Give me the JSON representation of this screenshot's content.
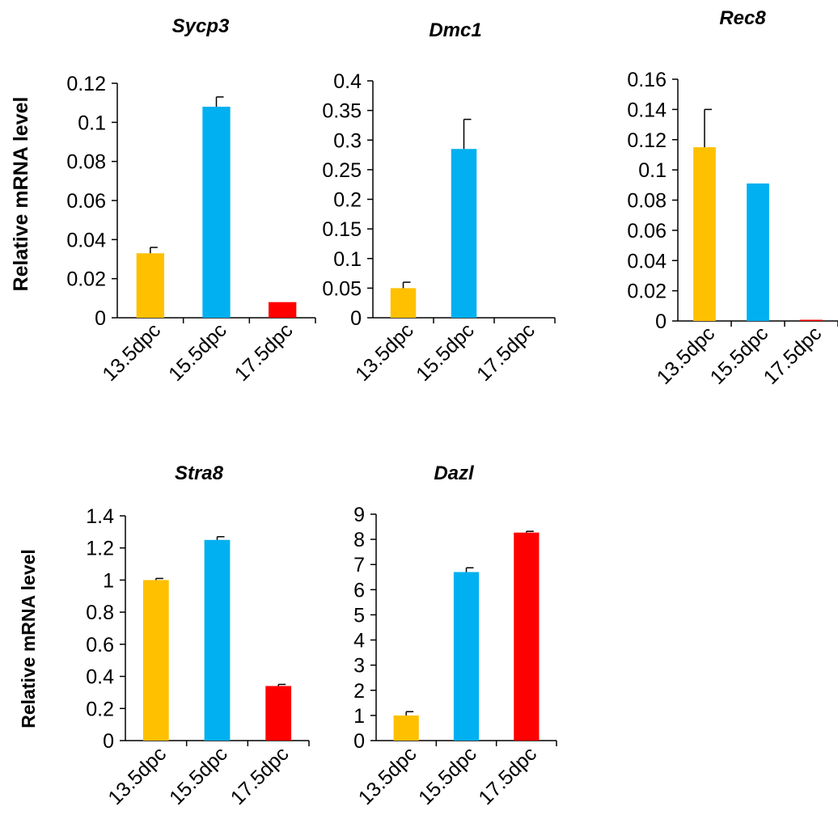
{
  "colors": {
    "13.5dpc": "#FFC000",
    "15.5dpc": "#00B0F0",
    "17.5dpc": "#FF0000"
  },
  "chart_data": [
    {
      "type": "bar",
      "title": "Sycp3",
      "ylabel": "Relative mRNA level",
      "categories": [
        "13.5dpc",
        "15.5dpc",
        "17.5dpc"
      ],
      "values": [
        0.033,
        0.108,
        0.008
      ],
      "errors": [
        0.003,
        0.005,
        0
      ],
      "ylim": [
        0,
        0.12
      ],
      "yticks": [
        0,
        0.02,
        0.04,
        0.06,
        0.08,
        0.1,
        0.12
      ],
      "ytick_labels": [
        "0",
        "0.02",
        "0.04",
        "0.06",
        "0.08",
        "0.1",
        "0.12"
      ]
    },
    {
      "type": "bar",
      "title": "Dmc1",
      "ylabel": "",
      "categories": [
        "13.5dpc",
        "15.5dpc",
        "17.5dpc"
      ],
      "values": [
        0.05,
        0.285,
        0
      ],
      "errors": [
        0.01,
        0.05,
        0
      ],
      "ylim": [
        0,
        0.4
      ],
      "yticks": [
        0,
        0.05,
        0.1,
        0.15,
        0.2,
        0.25,
        0.3,
        0.35,
        0.4
      ],
      "ytick_labels": [
        "0",
        "0.05",
        "0.1",
        "0.15",
        "0.2",
        "0.25",
        "0.3",
        "0.35",
        "0.4"
      ]
    },
    {
      "type": "bar",
      "title": "Rec8",
      "ylabel": "",
      "categories": [
        "13.5dpc",
        "15.5dpc",
        "17.5dpc"
      ],
      "values": [
        0.115,
        0.091,
        0.0008
      ],
      "errors": [
        0.025,
        0,
        0
      ],
      "ylim": [
        0,
        0.16
      ],
      "yticks": [
        0,
        0.02,
        0.04,
        0.06,
        0.08,
        0.1,
        0.12,
        0.14,
        0.16
      ],
      "ytick_labels": [
        "0",
        "0.02",
        "0.04",
        "0.06",
        "0.08",
        "0.1",
        "0.12",
        "0.14",
        "0.16"
      ]
    },
    {
      "type": "bar",
      "title": "Stra8",
      "ylabel": "Relative mRNA level",
      "categories": [
        "13.5dpc",
        "15.5dpc",
        "17.5dpc"
      ],
      "values": [
        1.0,
        1.25,
        0.34
      ],
      "errors": [
        0.01,
        0.02,
        0.01
      ],
      "ylim": [
        0,
        1.4
      ],
      "yticks": [
        0,
        0.2,
        0.4,
        0.6,
        0.8,
        1,
        1.2,
        1.4
      ],
      "ytick_labels": [
        "0",
        "0.2",
        "0.4",
        "0.6",
        "0.8",
        "1",
        "1.2",
        "1.4"
      ]
    },
    {
      "type": "bar",
      "title": "Dazl",
      "ylabel": "",
      "categories": [
        "13.5dpc",
        "15.5dpc",
        "17.5dpc"
      ],
      "values": [
        1.0,
        6.7,
        8.27
      ],
      "errors": [
        0.15,
        0.17,
        0.05
      ],
      "ylim": [
        0,
        9
      ],
      "yticks": [
        0,
        1,
        2,
        3,
        4,
        5,
        6,
        7,
        8,
        9
      ],
      "ytick_labels": [
        "0",
        "1",
        "2",
        "3",
        "4",
        "5",
        "6",
        "7",
        "8",
        "9"
      ]
    }
  ]
}
